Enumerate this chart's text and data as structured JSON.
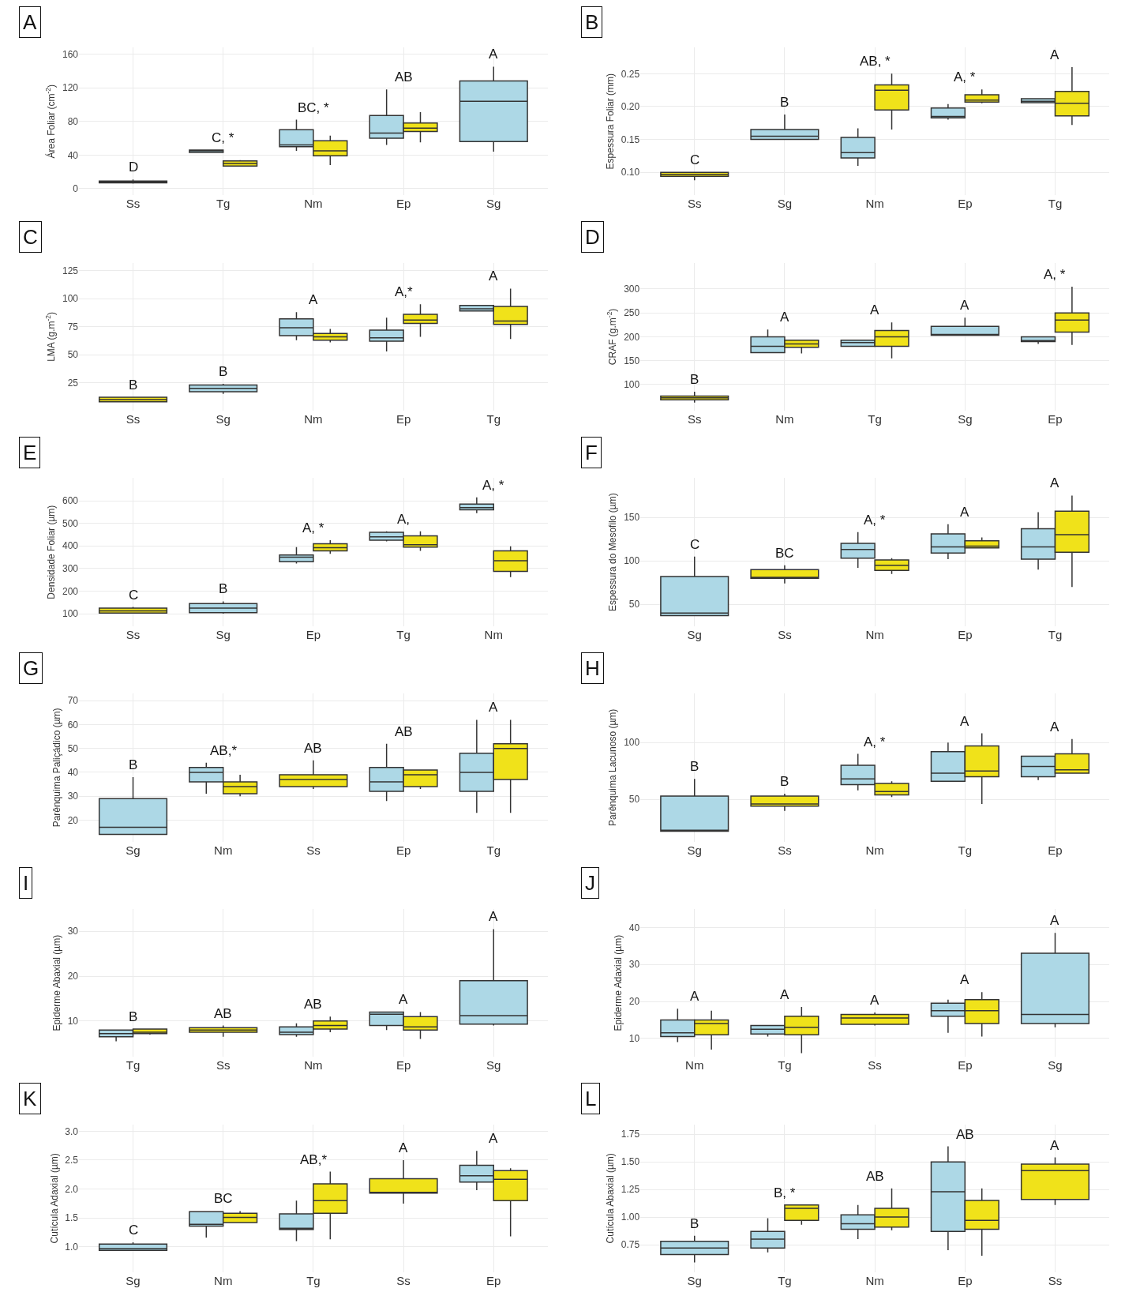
{
  "chart_data": [
    {
      "type": "box",
      "title": "A",
      "ylabel": "Área Foliar (cm$^{-2}$)",
      "categories": [
        "Ss",
        "Tg",
        "Nm",
        "Ep",
        "Sg"
      ],
      "ylim": [
        -8,
        168
      ],
      "yticks": [
        0,
        40,
        80,
        120,
        160
      ],
      "grid": true,
      "series": [
        {
          "color": "#add8e6",
          "boxes": [
            null,
            {
              "low": 43,
              "q1": 43,
              "median": 45,
              "q3": 46,
              "high": 46
            },
            {
              "low": 45,
              "q1": 50,
              "median": 52,
              "q3": 70,
              "high": 82
            },
            {
              "low": 52,
              "q1": 60,
              "median": 66,
              "q3": 87,
              "high": 118
            },
            {
              "low": 44,
              "q1": 56,
              "median": 104,
              "q3": 128,
              "high": 145
            }
          ]
        },
        {
          "color": "#f0e21a",
          "boxes": [
            {
              "low": 6,
              "q1": 7,
              "median": 8,
              "q3": 9,
              "high": 11
            },
            {
              "low": 27,
              "q1": 27,
              "median": 30,
              "q3": 33,
              "high": 34
            },
            {
              "low": 28,
              "q1": 39,
              "median": 45,
              "q3": 57,
              "high": 63
            },
            {
              "low": 55,
              "q1": 68,
              "median": 72,
              "q3": 78,
              "high": 91
            },
            null
          ]
        }
      ],
      "annotations": [
        "D",
        "C, *",
        "BC, *",
        "AB",
        "A"
      ]
    },
    {
      "type": "box",
      "title": "B",
      "ylabel": "Espessura Foliar (mm)",
      "categories": [
        "Ss",
        "Sg",
        "Nm",
        "Ep",
        "Tg"
      ],
      "ylim": [
        0.065,
        0.29
      ],
      "yticks": [
        {
          "value": 0.1,
          "label": "0.10"
        },
        {
          "value": 0.15,
          "label": "0.15"
        },
        {
          "value": 0.2,
          "label": "0.20"
        },
        {
          "value": 0.25,
          "label": "0.25"
        }
      ],
      "grid": true,
      "series": [
        {
          "color": "#add8e6",
          "boxes": [
            null,
            {
              "low": 0.15,
              "q1": 0.15,
              "median": 0.155,
              "q3": 0.165,
              "high": 0.188
            },
            {
              "low": 0.11,
              "q1": 0.122,
              "median": 0.13,
              "q3": 0.153,
              "high": 0.167
            },
            {
              "low": 0.18,
              "q1": 0.183,
              "median": 0.185,
              "q3": 0.198,
              "high": 0.204
            },
            {
              "low": 0.206,
              "q1": 0.206,
              "median": 0.208,
              "q3": 0.212,
              "high": 0.212
            }
          ]
        },
        {
          "color": "#f0e21a",
          "boxes": [
            {
              "low": 0.088,
              "q1": 0.094,
              "median": 0.097,
              "q3": 0.1,
              "high": 0.1
            },
            null,
            {
              "low": 0.165,
              "q1": 0.195,
              "median": 0.225,
              "q3": 0.233,
              "high": 0.25
            },
            {
              "low": 0.205,
              "q1": 0.207,
              "median": 0.21,
              "q3": 0.218,
              "high": 0.226
            },
            {
              "low": 0.172,
              "q1": 0.186,
              "median": 0.205,
              "q3": 0.223,
              "high": 0.26
            }
          ]
        }
      ],
      "annotations": [
        "C",
        "B",
        "AB, *",
        "A, *",
        "A"
      ]
    },
    {
      "type": "box",
      "title": "C",
      "ylabel": "LMA (g.m$^{-2}$)",
      "categories": [
        "Ss",
        "Sg",
        "Nm",
        "Ep",
        "Tg"
      ],
      "ylim": [
        0,
        132
      ],
      "yticks": [
        25,
        50,
        75,
        100,
        125
      ],
      "grid": true,
      "series": [
        {
          "color": "#add8e6",
          "boxes": [
            null,
            {
              "low": 15,
              "q1": 17,
              "median": 20,
              "q3": 23,
              "high": 24
            },
            {
              "low": 63,
              "q1": 67,
              "median": 74,
              "q3": 82,
              "high": 88
            },
            {
              "low": 53,
              "q1": 62,
              "median": 65,
              "q3": 72,
              "high": 83
            },
            {
              "low": 89,
              "q1": 89,
              "median": 91,
              "q3": 94,
              "high": 94
            }
          ]
        },
        {
          "color": "#f0e21a",
          "boxes": [
            {
              "low": 8,
              "q1": 8,
              "median": 10,
              "q3": 12,
              "high": 12
            },
            null,
            {
              "low": 61,
              "q1": 63,
              "median": 66,
              "q3": 69,
              "high": 73
            },
            {
              "low": 66,
              "q1": 78,
              "median": 81,
              "q3": 86,
              "high": 95
            },
            {
              "low": 64,
              "q1": 77,
              "median": 80,
              "q3": 93,
              "high": 109
            }
          ]
        }
      ],
      "annotations": [
        "B",
        "B",
        "A",
        "A,*",
        "A"
      ]
    },
    {
      "type": "box",
      "title": "D",
      "ylabel": "CRAF (g.m$^{-2}$)",
      "categories": [
        "Ss",
        "Nm",
        "Tg",
        "Sg",
        "Ep"
      ],
      "ylim": [
        45,
        355
      ],
      "yticks": [
        100,
        150,
        200,
        250,
        300
      ],
      "grid": true,
      "series": [
        {
          "color": "#add8e6",
          "boxes": [
            null,
            {
              "low": 167,
              "q1": 167,
              "median": 180,
              "q3": 200,
              "high": 215
            },
            {
              "low": 180,
              "q1": 180,
              "median": 188,
              "q3": 193,
              "high": 193
            },
            {
              "low": 203,
              "q1": 203,
              "median": 205,
              "q3": 222,
              "high": 240
            },
            {
              "low": 185,
              "q1": 190,
              "median": 192,
              "q3": 200,
              "high": 200
            }
          ]
        },
        {
          "color": "#f0e21a",
          "boxes": [
            {
              "low": 62,
              "q1": 68,
              "median": 72,
              "q3": 76,
              "high": 85
            },
            {
              "low": 165,
              "q1": 178,
              "median": 185,
              "q3": 193,
              "high": 193
            },
            {
              "low": 155,
              "q1": 180,
              "median": 200,
              "q3": 213,
              "high": 230
            },
            null,
            {
              "low": 183,
              "q1": 210,
              "median": 235,
              "q3": 250,
              "high": 305
            }
          ]
        }
      ],
      "annotations": [
        "B",
        "A",
        "A",
        "A",
        "A, *"
      ]
    },
    {
      "type": "box",
      "title": "E",
      "ylabel": "Densidade Foliar (µm)",
      "categories": [
        "Ss",
        "Sg",
        "Ep",
        "Tg",
        "Nm"
      ],
      "ylim": [
        45,
        700
      ],
      "yticks": [
        100,
        200,
        300,
        400,
        500,
        600
      ],
      "grid": true,
      "series": [
        {
          "color": "#add8e6",
          "boxes": [
            null,
            {
              "low": 100,
              "q1": 105,
              "median": 125,
              "q3": 145,
              "high": 155
            },
            {
              "low": 322,
              "q1": 330,
              "median": 350,
              "q3": 360,
              "high": 395
            },
            {
              "low": 420,
              "q1": 425,
              "median": 440,
              "q3": 460,
              "high": 465
            },
            {
              "low": 545,
              "q1": 560,
              "median": 570,
              "q3": 585,
              "high": 615
            }
          ]
        },
        {
          "color": "#f0e21a",
          "boxes": [
            {
              "low": 100,
              "q1": 103,
              "median": 113,
              "q3": 125,
              "high": 130
            },
            null,
            {
              "low": 365,
              "q1": 378,
              "median": 392,
              "q3": 410,
              "high": 425
            },
            {
              "low": 378,
              "q1": 395,
              "median": 405,
              "q3": 445,
              "high": 465
            },
            {
              "low": 262,
              "q1": 287,
              "median": 335,
              "q3": 378,
              "high": 398
            }
          ]
        }
      ],
      "annotations": [
        "C",
        "B",
        "A, *",
        "A,",
        "A, *"
      ]
    },
    {
      "type": "box",
      "title": "F",
      "ylabel": "Espessura do Mesofilo (µm)",
      "categories": [
        "Sg",
        "Ss",
        "Nm",
        "Ep",
        "Tg"
      ],
      "ylim": [
        25,
        195
      ],
      "yticks": [
        50,
        100,
        150
      ],
      "grid": true,
      "series": [
        {
          "color": "#add8e6",
          "boxes": [
            {
              "low": 37,
              "q1": 37,
              "median": 40,
              "q3": 82,
              "high": 105
            },
            null,
            {
              "low": 92,
              "q1": 103,
              "median": 113,
              "q3": 120,
              "high": 133
            },
            {
              "low": 102,
              "q1": 109,
              "median": 116,
              "q3": 131,
              "high": 142
            },
            {
              "low": 90,
              "q1": 102,
              "median": 116,
              "q3": 137,
              "high": 156
            }
          ]
        },
        {
          "color": "#f0e21a",
          "boxes": [
            null,
            {
              "low": 74,
              "q1": 80,
              "median": 81,
              "q3": 90,
              "high": 95
            },
            {
              "low": 85,
              "q1": 89,
              "median": 95,
              "q3": 101,
              "high": 103
            },
            {
              "low": 115,
              "q1": 115,
              "median": 117,
              "q3": 123,
              "high": 127
            },
            {
              "low": 70,
              "q1": 110,
              "median": 130,
              "q3": 157,
              "high": 175
            }
          ]
        }
      ],
      "annotations": [
        "C",
        "BC",
        "A, *",
        "A",
        "A"
      ]
    },
    {
      "type": "box",
      "title": "G",
      "ylabel": "Parênquima Paliçádico (µm)",
      "categories": [
        "Sg",
        "Nm",
        "Ss",
        "Ep",
        "Tg"
      ],
      "ylim": [
        11,
        73
      ],
      "yticks": [
        20,
        30,
        40,
        50,
        60,
        70
      ],
      "grid": true,
      "series": [
        {
          "color": "#add8e6",
          "boxes": [
            {
              "low": 14,
              "q1": 14,
              "median": 17,
              "q3": 29,
              "high": 38
            },
            {
              "low": 31,
              "q1": 36,
              "median": 40,
              "q3": 42,
              "high": 44
            },
            null,
            {
              "low": 28,
              "q1": 32,
              "median": 36,
              "q3": 42,
              "high": 52
            },
            {
              "low": 23,
              "q1": 32,
              "median": 40,
              "q3": 48,
              "high": 62
            }
          ]
        },
        {
          "color": "#f0e21a",
          "boxes": [
            null,
            {
              "low": 30,
              "q1": 31,
              "median": 34,
              "q3": 36,
              "high": 39
            },
            {
              "low": 33,
              "q1": 34,
              "median": 37,
              "q3": 39,
              "high": 45
            },
            {
              "low": 33,
              "q1": 34,
              "median": 39,
              "q3": 41,
              "high": 41
            },
            {
              "low": 23,
              "q1": 37,
              "median": 50,
              "q3": 52,
              "high": 62
            }
          ]
        }
      ],
      "annotations": [
        "B",
        "AB,*",
        "AB",
        "AB",
        "A"
      ]
    },
    {
      "type": "box",
      "title": "H",
      "ylabel": "Parênquima Lacunoso (µm)",
      "categories": [
        "Sg",
        "Ss",
        "Nm",
        "Tg",
        "Ep"
      ],
      "ylim": [
        13,
        143
      ],
      "yticks": [
        50,
        100
      ],
      "grid": true,
      "series": [
        {
          "color": "#add8e6",
          "boxes": [
            {
              "low": 22,
              "q1": 22,
              "median": 23,
              "q3": 53,
              "high": 68
            },
            null,
            {
              "low": 58,
              "q1": 63,
              "median": 68,
              "q3": 80,
              "high": 90
            },
            {
              "low": 66,
              "q1": 66,
              "median": 73,
              "q3": 92,
              "high": 100
            },
            {
              "low": 67,
              "q1": 70,
              "median": 79,
              "q3": 88,
              "high": 88
            }
          ]
        },
        {
          "color": "#f0e21a",
          "boxes": [
            null,
            {
              "low": 40,
              "q1": 44,
              "median": 46,
              "q3": 53,
              "high": 55
            },
            {
              "low": 52,
              "q1": 54,
              "median": 57,
              "q3": 64,
              "high": 66
            },
            {
              "low": 46,
              "q1": 70,
              "median": 75,
              "q3": 97,
              "high": 108
            },
            {
              "low": 73,
              "q1": 73,
              "median": 76,
              "q3": 90,
              "high": 103
            }
          ]
        }
      ],
      "annotations": [
        "B",
        "B",
        "A, *",
        "A",
        "A"
      ]
    },
    {
      "type": "box",
      "title": "I",
      "ylabel": "Epiderme Abaxial (µm)",
      "categories": [
        "Tg",
        "Ss",
        "Nm",
        "Ep",
        "Sg"
      ],
      "ylim": [
        2,
        35
      ],
      "yticks": [
        10,
        20,
        30
      ],
      "grid": true,
      "series": [
        {
          "color": "#add8e6",
          "boxes": [
            {
              "low": 5.5,
              "q1": 6.5,
              "median": 7.2,
              "q3": 8,
              "high": 8
            },
            null,
            {
              "low": 6.5,
              "q1": 7,
              "median": 7.5,
              "q3": 8.7,
              "high": 9.5
            },
            {
              "low": 8,
              "q1": 9,
              "median": 11.5,
              "q3": 12,
              "high": 12
            },
            {
              "low": 9,
              "q1": 9.3,
              "median": 11.2,
              "q3": 19,
              "high": 30.5
            }
          ]
        },
        {
          "color": "#f0e21a",
          "boxes": [
            {
              "low": 7,
              "q1": 7.2,
              "median": 7.5,
              "q3": 8.2,
              "high": 8.2
            },
            {
              "low": 6.5,
              "q1": 7.5,
              "median": 8,
              "q3": 8.5,
              "high": 9
            },
            {
              "low": 7.5,
              "q1": 8.2,
              "median": 9,
              "q3": 10,
              "high": 11
            },
            {
              "low": 6,
              "q1": 8,
              "median": 8.7,
              "q3": 11,
              "high": 12
            },
            null
          ]
        }
      ],
      "annotations": [
        "B",
        "AB",
        "AB",
        "A",
        "A"
      ]
    },
    {
      "type": "box",
      "title": "J",
      "ylabel": "Epiderme Adaxial (µm)",
      "categories": [
        "Nm",
        "Tg",
        "Ss",
        "Ep",
        "Sg"
      ],
      "ylim": [
        5,
        45
      ],
      "yticks": [
        10,
        20,
        30,
        40
      ],
      "grid": true,
      "series": [
        {
          "color": "#add8e6",
          "boxes": [
            {
              "low": 9,
              "q1": 10.5,
              "median": 11.5,
              "q3": 15,
              "high": 18
            },
            {
              "low": 10.5,
              "q1": 11.2,
              "median": 12.5,
              "q3": 13.5,
              "high": 13.5
            },
            null,
            {
              "low": 11.5,
              "q1": 16,
              "median": 17.5,
              "q3": 19.5,
              "high": 20.5
            },
            {
              "low": 13,
              "q1": 14,
              "median": 16.5,
              "q3": 33,
              "high": 38.5
            }
          ]
        },
        {
          "color": "#f0e21a",
          "boxes": [
            {
              "low": 7,
              "q1": 11,
              "median": 14,
              "q3": 15,
              "high": 17.5
            },
            {
              "low": 6,
              "q1": 11,
              "median": 13,
              "q3": 16,
              "high": 18.5
            },
            {
              "low": 13.5,
              "q1": 13.8,
              "median": 15.5,
              "q3": 16.5,
              "high": 17
            },
            {
              "low": 10.5,
              "q1": 14,
              "median": 17.5,
              "q3": 20.5,
              "high": 22.5
            },
            null
          ]
        }
      ],
      "annotations": [
        "A",
        "A",
        "A",
        "A",
        "A"
      ]
    },
    {
      "type": "box",
      "title": "K",
      "ylabel": "Cutícula Adaxial (µm)",
      "categories": [
        "Sg",
        "Nm",
        "Tg",
        "Ss",
        "Ep"
      ],
      "ylim": [
        0.56,
        3.12
      ],
      "yticks": [
        {
          "value": 1,
          "label": "1.0"
        },
        {
          "value": 1.5,
          "label": "1.5"
        },
        {
          "value": 2,
          "label": "2.0"
        },
        {
          "value": 2.5,
          "label": "2.5"
        },
        {
          "value": 3,
          "label": "3.0"
        }
      ],
      "grid": true,
      "series": [
        {
          "color": "#add8e6",
          "boxes": [
            {
              "low": 0.93,
              "q1": 0.94,
              "median": 0.97,
              "q3": 1.05,
              "high": 1.08
            },
            {
              "low": 1.16,
              "q1": 1.36,
              "median": 1.39,
              "q3": 1.61,
              "high": 1.62
            },
            {
              "low": 1.1,
              "q1": 1.3,
              "median": 1.32,
              "q3": 1.57,
              "high": 1.8
            },
            null,
            {
              "low": 1.98,
              "q1": 2.12,
              "median": 2.23,
              "q3": 2.41,
              "high": 2.66
            }
          ]
        },
        {
          "color": "#f0e21a",
          "boxes": [
            null,
            {
              "low": 1.42,
              "q1": 1.42,
              "median": 1.51,
              "q3": 1.58,
              "high": 1.62
            },
            {
              "low": 1.13,
              "q1": 1.58,
              "median": 1.8,
              "q3": 2.09,
              "high": 2.3
            },
            {
              "low": 1.75,
              "q1": 1.93,
              "median": 1.94,
              "q3": 2.18,
              "high": 2.5
            },
            {
              "low": 1.18,
              "q1": 1.8,
              "median": 2.17,
              "q3": 2.32,
              "high": 2.36
            }
          ]
        }
      ],
      "annotations": [
        "C",
        "BC",
        "AB,*",
        "A",
        "A"
      ]
    },
    {
      "type": "box",
      "title": "L",
      "ylabel": "Cutícula Abaxial (µm)",
      "categories": [
        "Sg",
        "Tg",
        "Nm",
        "Ep",
        "Ss"
      ],
      "ylim": [
        0.5,
        1.84
      ],
      "yticks": [
        {
          "value": 0.75,
          "label": "0.75"
        },
        {
          "value": 1,
          "label": "1.00"
        },
        {
          "value": 1.25,
          "label": "1.25"
        },
        {
          "value": 1.5,
          "label": "1.50"
        },
        {
          "value": 1.75,
          "label": "1.75"
        }
      ],
      "grid": true,
      "series": [
        {
          "color": "#add8e6",
          "boxes": [
            {
              "low": 0.59,
              "q1": 0.66,
              "median": 0.72,
              "q3": 0.78,
              "high": 0.83
            },
            {
              "low": 0.68,
              "q1": 0.72,
              "median": 0.8,
              "q3": 0.87,
              "high": 0.99
            },
            {
              "low": 0.8,
              "q1": 0.89,
              "median": 0.94,
              "q3": 1.02,
              "high": 1.11
            },
            {
              "low": 0.7,
              "q1": 0.87,
              "median": 1.23,
              "q3": 1.5,
              "high": 1.64
            },
            null
          ]
        },
        {
          "color": "#f0e21a",
          "boxes": [
            null,
            {
              "low": 0.93,
              "q1": 0.97,
              "median": 1.08,
              "q3": 1.11,
              "high": 1.11
            },
            {
              "low": 0.88,
              "q1": 0.91,
              "median": 1.0,
              "q3": 1.08,
              "high": 1.26
            },
            {
              "low": 0.65,
              "q1": 0.89,
              "median": 0.97,
              "q3": 1.15,
              "high": 1.26
            },
            {
              "low": 1.11,
              "q1": 1.16,
              "median": 1.42,
              "q3": 1.48,
              "high": 1.54
            }
          ]
        }
      ],
      "annotations": [
        "B",
        "B, *",
        "AB",
        "AB",
        "A"
      ]
    }
  ]
}
